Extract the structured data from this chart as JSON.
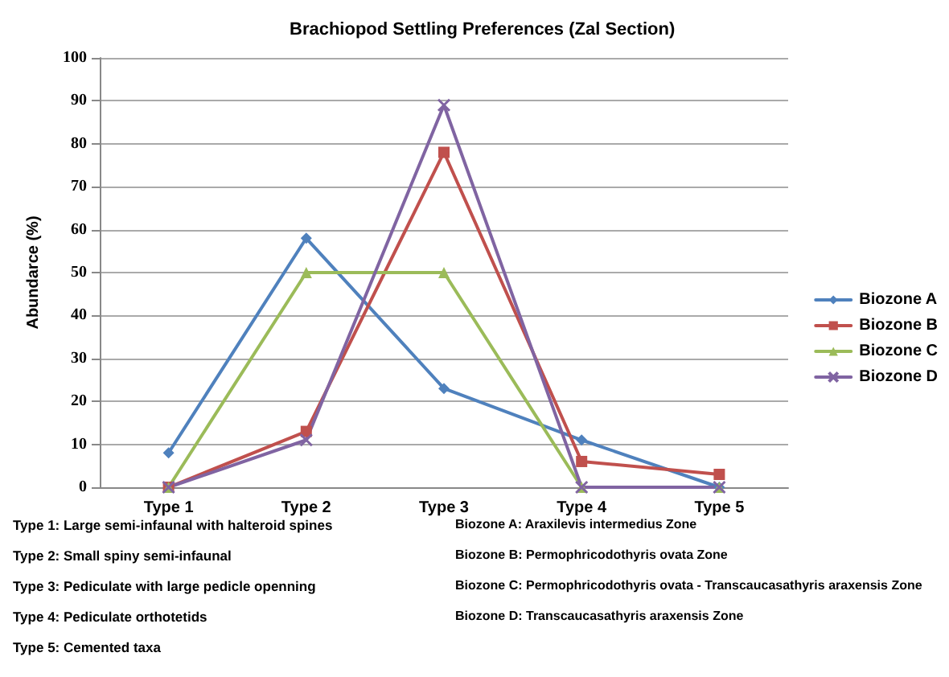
{
  "chart_data": {
    "type": "line",
    "title": "Brachiopod Settling Preferences (Zal Section)",
    "ylabel": "Abundarce (%)",
    "categories": [
      "Type 1",
      "Type 2",
      "Type 3",
      "Type 4",
      "Type 5"
    ],
    "series": [
      {
        "name": "Biozone A",
        "color": "#4f81bd",
        "marker": "diamond",
        "values": [
          8,
          58,
          23,
          11,
          0
        ]
      },
      {
        "name": "Biozone B",
        "color": "#c0504d",
        "marker": "square",
        "values": [
          0,
          13,
          78,
          6,
          3
        ]
      },
      {
        "name": "Biozone C",
        "color": "#9bbb59",
        "marker": "triangle",
        "values": [
          0,
          50,
          50,
          0,
          0
        ]
      },
      {
        "name": "Biozone D",
        "color": "#8064a2",
        "marker": "cross",
        "values": [
          0,
          11,
          89,
          0,
          0
        ]
      }
    ],
    "ylim": [
      0,
      100
    ],
    "yticks": [
      0,
      10,
      20,
      30,
      40,
      50,
      60,
      70,
      80,
      90,
      100
    ],
    "grid": "y",
    "legend": "right",
    "line_style": "solid",
    "annotations": [
      "Type 1: Large semi-infaunal with halteroid spines",
      "Type 2: Small spiny semi-infaunal",
      "Type 3: Pediculate with large pedicle openning",
      "Type 4: Pediculate orthotetids",
      "Type 5: Cemented taxa",
      "Biozone A: Araxilevis intermedius Zone",
      "Biozone B: Permophricodothyris ovata Zone",
      "Biozone C: Permophricodothyris ovata - Transcaucasathyris araxensis Zone",
      "Biozone D: Transcaucasathyris araxensis Zone"
    ]
  }
}
